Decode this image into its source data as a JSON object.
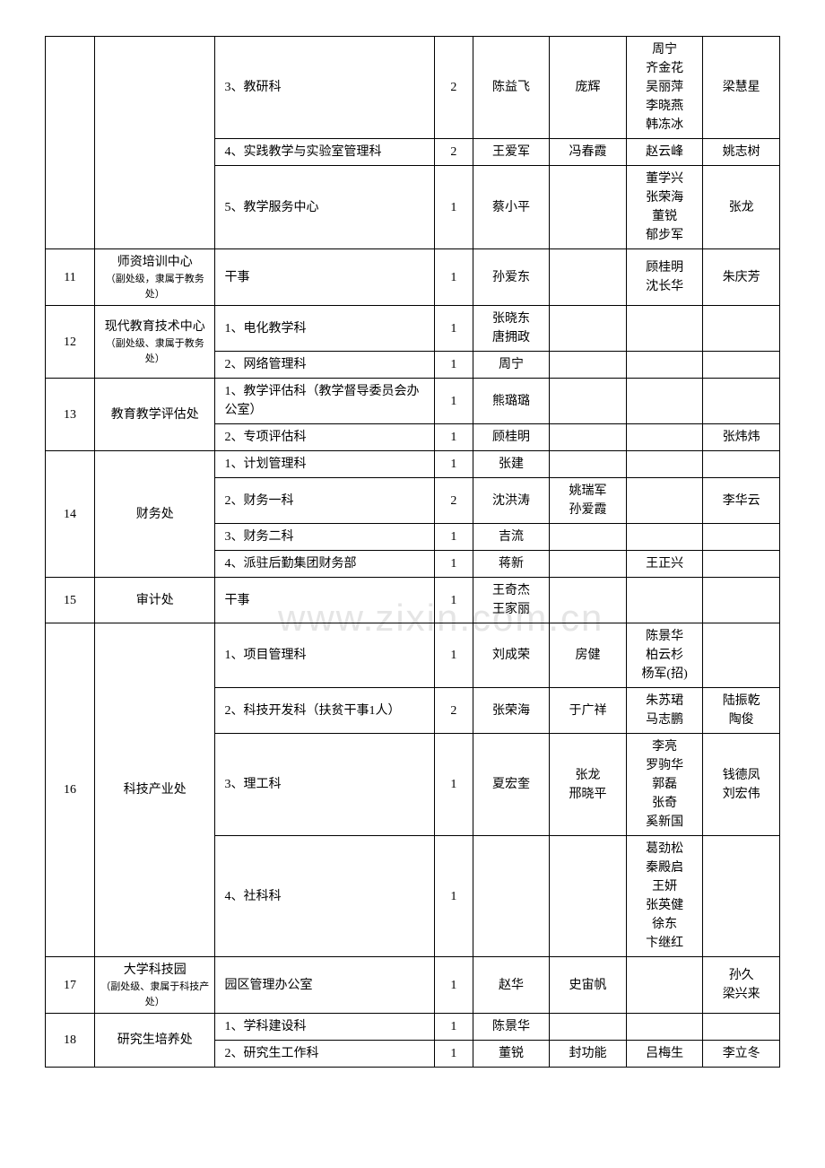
{
  "watermark": "www.zixin.com.cn",
  "rows": [
    {
      "num": "",
      "dept": "",
      "sub": "3、教研科",
      "cnt": "2",
      "n1": "陈益飞",
      "n2": "庞辉",
      "n3": "周宁\n齐金花\n吴丽萍\n李晓燕\n韩冻冰",
      "n4": "梁慧星"
    },
    {
      "num": "",
      "dept": "",
      "sub": "4、实践教学与实验室管理科",
      "cnt": "2",
      "n1": "王爱军",
      "n2": "冯春霞",
      "n3": "赵云峰",
      "n4": "姚志树"
    },
    {
      "num": "",
      "dept": "",
      "sub": "5、教学服务中心",
      "cnt": "1",
      "n1": "蔡小平",
      "n2": "",
      "n3": "董学兴\n张荣海\n董锐\n郁步军",
      "n4": "张龙"
    },
    {
      "num": "11",
      "dept": "师资培训中心\n（副处级，隶属于教务处）",
      "sub": "干事",
      "cnt": "1",
      "n1": "孙爱东",
      "n2": "",
      "n3": "顾桂明\n沈长华",
      "n4": "朱庆芳"
    },
    {
      "num": "12",
      "dept": "现代教育技术中心\n（副处级、隶属于教务处）",
      "sub": "1、电化教学科",
      "cnt": "1",
      "n1": "张晓东\n唐拥政",
      "n2": "",
      "n3": "",
      "n4": ""
    },
    {
      "num": "",
      "dept": "",
      "sub": "2、网络管理科",
      "cnt": "1",
      "n1": "周宁",
      "n2": "",
      "n3": "",
      "n4": ""
    },
    {
      "num": "13",
      "dept": "教育教学评估处",
      "sub": "1、教学评估科（教学督导委员会办公室）",
      "cnt": "1",
      "n1": "熊璐璐",
      "n2": "",
      "n3": "",
      "n4": ""
    },
    {
      "num": "",
      "dept": "",
      "sub": "2、专项评估科",
      "cnt": "1",
      "n1": "顾桂明",
      "n2": "",
      "n3": "",
      "n4": "张炜炜"
    },
    {
      "num": "14",
      "dept": "财务处",
      "sub": "1、计划管理科",
      "cnt": "1",
      "n1": "张建",
      "n2": "",
      "n3": "",
      "n4": ""
    },
    {
      "num": "",
      "dept": "",
      "sub": "2、财务一科",
      "cnt": "2",
      "n1": "沈洪涛",
      "n2": "姚瑞军\n孙爱霞",
      "n3": "",
      "n4": "李华云"
    },
    {
      "num": "",
      "dept": "",
      "sub": "3、财务二科",
      "cnt": "1",
      "n1": "吉流",
      "n2": "",
      "n3": "",
      "n4": ""
    },
    {
      "num": "",
      "dept": "",
      "sub": "4、派驻后勤集团财务部",
      "cnt": "1",
      "n1": "蒋新",
      "n2": "",
      "n3": "王正兴",
      "n4": ""
    },
    {
      "num": "15",
      "dept": "审计处",
      "sub": "干事",
      "cnt": "1",
      "n1": "王奇杰\n王家丽",
      "n2": "",
      "n3": "",
      "n4": ""
    },
    {
      "num": "16",
      "dept": "科技产业处",
      "sub": "1、项目管理科",
      "cnt": "1",
      "n1": "刘成荣",
      "n2": "房健",
      "n3": "陈景华\n柏云杉\n杨军(招)",
      "n4": ""
    },
    {
      "num": "",
      "dept": "",
      "sub": "2、科技开发科（扶贫干事1人）",
      "cnt": "2",
      "n1": "张荣海",
      "n2": "于广祥",
      "n3": "朱苏珺\n马志鹏",
      "n4": "陆振乾\n陶俊"
    },
    {
      "num": "",
      "dept": "",
      "sub": "3、理工科",
      "cnt": "1",
      "n1": "夏宏奎",
      "n2": "张龙\n邢晓平",
      "n3": "李亮\n罗驹华\n郭磊\n张奇\n奚新国",
      "n4": "钱德凤\n刘宏伟"
    },
    {
      "num": "",
      "dept": "",
      "sub": "4、社科科",
      "cnt": "1",
      "n1": "",
      "n2": "",
      "n3": "葛劲松\n秦殿启\n王妍\n张英健\n徐东\n卞继红",
      "n4": ""
    },
    {
      "num": "17",
      "dept": "大学科技园\n（副处级、隶属于科技产处）",
      "sub": "园区管理办公室",
      "cnt": "1",
      "n1": "赵华",
      "n2": "史宙帆",
      "n3": "",
      "n4": "孙久\n梁兴来"
    },
    {
      "num": "18",
      "dept": "研究生培养处",
      "sub": "1、学科建设科",
      "cnt": "1",
      "n1": "陈景华",
      "n2": "",
      "n3": "",
      "n4": ""
    },
    {
      "num": "",
      "dept": "",
      "sub": "2、研究生工作科",
      "cnt": "1",
      "n1": "董锐",
      "n2": "封功能",
      "n3": "吕梅生",
      "n4": "李立冬"
    }
  ],
  "rowspans": {
    "0": {
      "num": 3,
      "dept": 3
    },
    "4": {
      "num": 2,
      "dept": 2
    },
    "6": {
      "num": 2,
      "dept": 2
    },
    "8": {
      "num": 4,
      "dept": 4
    },
    "13": {
      "num": 4,
      "dept": 4
    },
    "18": {
      "num": 2,
      "dept": 2
    }
  },
  "deptSmall": {
    "3": true,
    "4": true,
    "17": true
  }
}
